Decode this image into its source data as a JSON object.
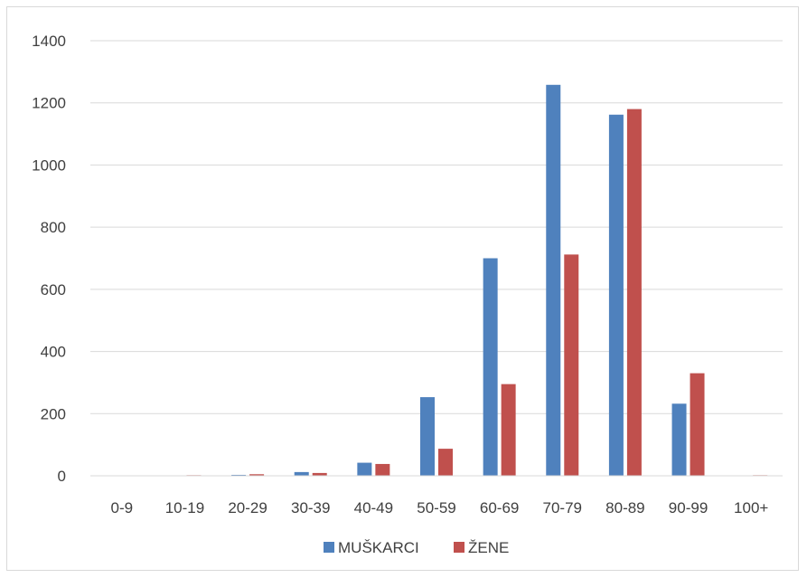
{
  "chart_data": {
    "type": "bar",
    "title": "",
    "xlabel": "",
    "ylabel": "",
    "categories": [
      "0-9",
      "10-19",
      "20-29",
      "30-39",
      "40-49",
      "50-59",
      "60-69",
      "70-79",
      "80-89",
      "90-99",
      "100+"
    ],
    "series": [
      {
        "name": "MUŠKARCI",
        "color": "#4f81bd",
        "values": [
          0,
          0,
          3,
          12,
          42,
          253,
          700,
          1258,
          1162,
          232,
          0
        ]
      },
      {
        "name": "ŽENE",
        "color": "#c0504d",
        "values": [
          0,
          2,
          5,
          9,
          38,
          87,
          295,
          712,
          1180,
          330,
          2
        ]
      }
    ],
    "ylim": [
      0,
      1400
    ],
    "yticks": [
      0,
      200,
      400,
      600,
      800,
      1000,
      1200,
      1400
    ],
    "grid": true,
    "legend_position": "bottom"
  }
}
